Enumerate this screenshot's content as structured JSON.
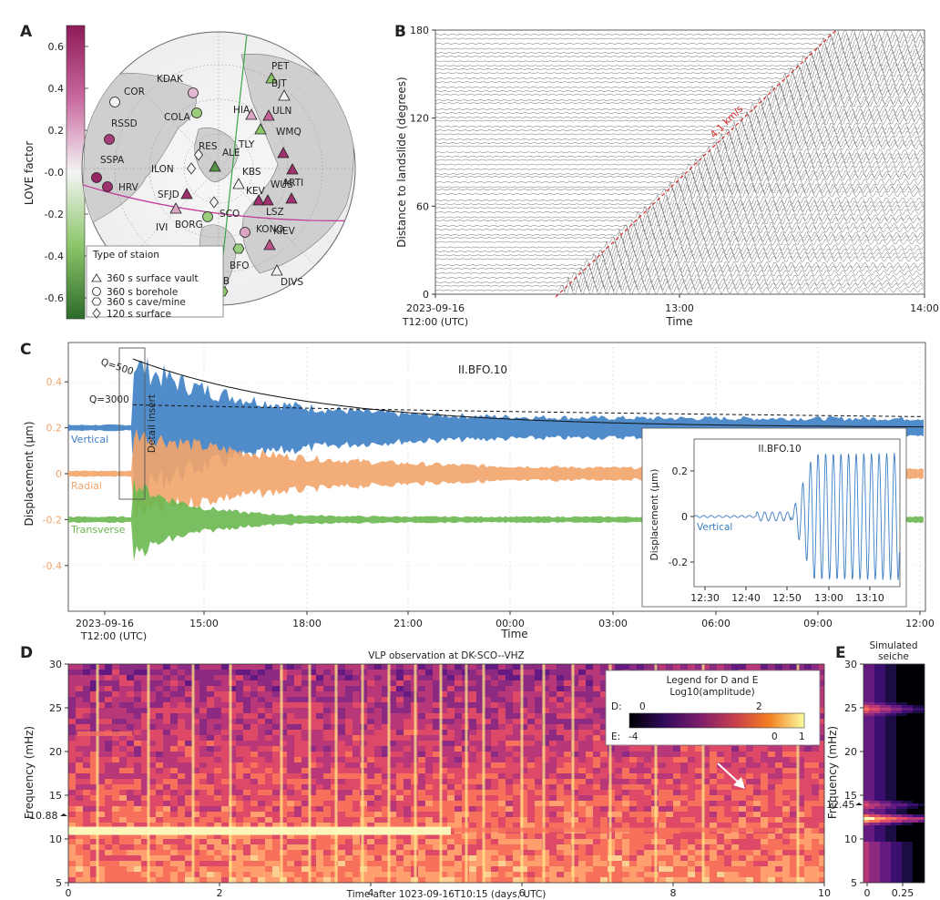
{
  "colors": {
    "vertical": "#3d7fc4",
    "radial": "#f2a46a",
    "transverse": "#6ab850",
    "love_pos": "#8e1a5a",
    "love_neg": "#2e7d2e",
    "red_line": "#d62728",
    "green_line": "#3aa54a",
    "pink_line": "#c03898"
  },
  "panels": {
    "A": {
      "letter": "A",
      "colorbar": {
        "label": "LOVE factor",
        "ticks": [
          "0.6",
          "0.4",
          "0.2",
          "-0.0",
          "-0.2",
          "-0.4",
          "-0.6"
        ],
        "min": -0.7,
        "max": 0.7
      },
      "legend": {
        "title": "Type of staion",
        "items": [
          "360 s surface vault",
          "360 s borehole",
          "360 s cave/mine",
          "120 s surface"
        ]
      },
      "stations": [
        {
          "name": "COR",
          "shape": "circle",
          "love": 0.0
        },
        {
          "name": "KDAK",
          "shape": "circle",
          "love": 0.15
        },
        {
          "name": "PET",
          "shape": "triangle",
          "love": -0.35
        },
        {
          "name": "RSSD",
          "shape": "circle",
          "love": 0.55
        },
        {
          "name": "COLA",
          "shape": "circle",
          "love": -0.3
        },
        {
          "name": "HIA",
          "shape": "triangle",
          "love": 0.2
        },
        {
          "name": "BJT",
          "shape": "triangle",
          "love": 0.0
        },
        {
          "name": "ULN",
          "shape": "triangle",
          "love": 0.4
        },
        {
          "name": "TLY",
          "shape": "triangle",
          "love": -0.35
        },
        {
          "name": "RES",
          "shape": "diamond",
          "love": 0.0
        },
        {
          "name": "ILON",
          "shape": "diamond",
          "love": 0.0
        },
        {
          "name": "ALE",
          "shape": "triangle",
          "love": -0.55
        },
        {
          "name": "WMQ",
          "shape": "triangle",
          "love": 0.6
        },
        {
          "name": "SSPA",
          "shape": "circle",
          "love": 0.65
        },
        {
          "name": "KBS",
          "shape": "triangle",
          "love": 0.0
        },
        {
          "name": "WUS",
          "shape": "triangle",
          "love": 0.6
        },
        {
          "name": "HRV",
          "shape": "circle",
          "love": 0.6
        },
        {
          "name": "SFJD",
          "shape": "triangle",
          "love": 0.6
        },
        {
          "name": "IVI",
          "shape": "triangle",
          "love": 0.2
        },
        {
          "name": "SCO",
          "shape": "diamond",
          "love": 0.0
        },
        {
          "name": "KEV",
          "shape": "triangle",
          "love": 0.6
        },
        {
          "name": "LSZ",
          "shape": "triangle",
          "love": 0.6
        },
        {
          "name": "ARTI",
          "shape": "triangle",
          "love": 0.6
        },
        {
          "name": "BORG",
          "shape": "circle",
          "love": -0.3
        },
        {
          "name": "KONO",
          "shape": "circle",
          "love": 0.2
        },
        {
          "name": "KIEV",
          "shape": "triangle",
          "love": 0.45
        },
        {
          "name": "BFO",
          "shape": "hexagon",
          "love": -0.3
        },
        {
          "name": "DIVS",
          "shape": "triangle",
          "love": 0.0
        },
        {
          "name": "PAB",
          "shape": "hexagon",
          "love": -0.35
        }
      ]
    },
    "B": {
      "letter": "B",
      "ylabel": "Distance to landslide (degrees)",
      "xlabel": "Time",
      "yticks": [
        "180",
        "120",
        "60",
        "0"
      ],
      "xticks": [
        "2023-09-16",
        "13:00",
        "14:00"
      ],
      "x_origin_sub": "T12:00 (UTC)",
      "annotation": "4.1 km/s"
    },
    "C": {
      "letter": "C",
      "title": "II.BFO.10",
      "ylabel": "Displacement (μm)",
      "xlabel": "Time",
      "yticks": [
        "0.4",
        "0.2",
        "0",
        "-0.2",
        "-0.4"
      ],
      "xticks": [
        "2023-09-16",
        "15:00",
        "18:00",
        "21:00",
        "00:00",
        "03:00",
        "06:00",
        "09:00",
        "12:00"
      ],
      "x_origin_sub": "T12:00 (UTC)",
      "q500": "Q=500",
      "q3000": "Q=3000",
      "detail_label": "Detail insert",
      "components": [
        "Vertical",
        "Radial",
        "Transverse"
      ],
      "inset": {
        "title": "II.BFO.10",
        "ylabel": "Displacement (μm)",
        "component": "Vertical",
        "yticks": [
          "0.2",
          "0",
          "-0.2"
        ],
        "xticks": [
          "12:30",
          "12:40",
          "12:50",
          "13:00",
          "13:10"
        ]
      }
    },
    "D": {
      "letter": "D",
      "title": "VLP observation at DK-SCO--VHZ",
      "ylabel": "Frequency (mHz)",
      "xlabel": "Time after 1023-09-16T10:15 (days, UTC)",
      "yticks": [
        "30",
        "25",
        "20",
        "15",
        "10",
        "5"
      ],
      "xticks": [
        "0",
        "2",
        "4",
        "6",
        "8",
        "10"
      ],
      "marker": "10.88",
      "legend": {
        "title1": "Legend for D and E",
        "title2": "Log10(amplitude)",
        "d_label": "D:",
        "d_ticks": [
          "0",
          "2"
        ],
        "e_label": "E:",
        "e_ticks": [
          "-4",
          "0",
          "1"
        ]
      }
    },
    "E": {
      "letter": "E",
      "title1": "Simulated",
      "title2": "seiche",
      "ylabel": "Frequency (mHz)",
      "yticks": [
        "30",
        "25",
        "20",
        "15",
        "10",
        "5"
      ],
      "xticks": [
        "0",
        "0.25"
      ],
      "marker": "12.45"
    }
  }
}
